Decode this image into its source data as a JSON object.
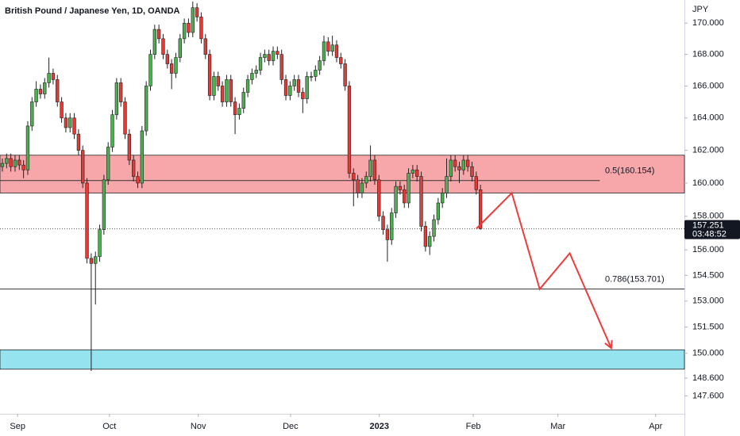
{
  "chart_data": {
    "type": "candlestick",
    "title": "British Pound / Japanese Yen, 1D, OANDA",
    "y_unit": "JPY",
    "log": true,
    "up_color": "#4caf50",
    "down_color": "#e53935",
    "wick_color": "#222222",
    "open": [
      161.0,
      161.2,
      161.5,
      161.0,
      161.4,
      161.1,
      160.8,
      163.5,
      165.0,
      165.8,
      165.5,
      166.2,
      166.8,
      166.4,
      165.0,
      164.0,
      163.4,
      164.0,
      163.0,
      162.0,
      160.0,
      155.5,
      155.2,
      155.6,
      157.2,
      160.2,
      162.2,
      164.2,
      166.2,
      165.0,
      163.0,
      161.4,
      160.4,
      160.0,
      163.2,
      166.0,
      168.0,
      169.6,
      169.0,
      168.0,
      167.4,
      166.8,
      167.8,
      169.0,
      170.0,
      169.4,
      171.0,
      170.4,
      169.0,
      168.0,
      165.4,
      166.6,
      166.0,
      165.0,
      166.4,
      165.0,
      164.2,
      164.6,
      165.6,
      166.4,
      166.8,
      167.0,
      167.8,
      168.0,
      167.6,
      168.2,
      168.0,
      166.4,
      165.4,
      166.0,
      166.4,
      165.6,
      165.2,
      166.6,
      166.6,
      167.0,
      167.6,
      168.8,
      168.2,
      168.6,
      167.8,
      167.4,
      166.0,
      160.6,
      160.2,
      159.4,
      160.0,
      160.4,
      161.4,
      160.2,
      158.0,
      157.2,
      156.6,
      158.2,
      159.8,
      159.6,
      158.8,
      160.6,
      160.8,
      160.4,
      157.4,
      156.2,
      156.8,
      157.8,
      158.8,
      159.4,
      160.4,
      161.4,
      161.0,
      160.8,
      161.4,
      161.0,
      160.4,
      159.6
    ],
    "high": [
      161.5,
      161.8,
      161.8,
      161.7,
      161.7,
      161.4,
      163.8,
      165.3,
      166.3,
      166.1,
      166.5,
      167.8,
      167.1,
      166.7,
      165.3,
      164.3,
      164.3,
      164.3,
      163.3,
      162.3,
      160.3,
      155.8,
      155.9,
      157.5,
      160.5,
      162.5,
      164.5,
      166.5,
      166.5,
      165.3,
      163.3,
      161.7,
      160.7,
      163.5,
      166.3,
      168.3,
      169.9,
      169.9,
      169.3,
      168.3,
      167.7,
      168.1,
      169.3,
      170.3,
      170.3,
      171.4,
      171.3,
      170.7,
      169.3,
      168.3,
      166.9,
      166.9,
      166.3,
      166.7,
      166.7,
      165.3,
      164.9,
      165.9,
      166.7,
      167.1,
      167.3,
      168.1,
      168.3,
      168.3,
      168.5,
      168.5,
      168.3,
      166.7,
      166.3,
      166.7,
      166.7,
      165.9,
      166.9,
      166.9,
      167.3,
      167.9,
      169.2,
      169.1,
      169.2,
      168.9,
      168.1,
      167.7,
      166.3,
      160.9,
      160.5,
      160.3,
      160.7,
      162.3,
      161.7,
      160.5,
      158.3,
      157.5,
      158.5,
      160.1,
      160.1,
      159.9,
      160.9,
      161.1,
      161.1,
      160.7,
      157.7,
      157.1,
      158.1,
      159.1,
      159.7,
      161.5,
      161.7,
      161.7,
      161.3,
      161.7,
      161.7,
      161.3,
      160.7,
      159.9
    ],
    "low": [
      160.7,
      160.9,
      160.7,
      160.7,
      160.8,
      160.3,
      160.5,
      163.2,
      164.7,
      165.2,
      165.2,
      165.9,
      166.1,
      164.7,
      163.7,
      163.1,
      163.1,
      162.7,
      161.7,
      159.7,
      155.2,
      149.0,
      152.8,
      155.3,
      156.9,
      159.9,
      161.9,
      163.9,
      164.7,
      162.7,
      161.1,
      160.1,
      159.7,
      159.7,
      162.9,
      165.7,
      167.7,
      168.7,
      167.7,
      167.1,
      165.8,
      166.5,
      167.5,
      168.7,
      169.1,
      169.1,
      170.1,
      168.7,
      167.7,
      165.1,
      165.1,
      165.7,
      164.7,
      164.7,
      164.7,
      163.0,
      163.9,
      164.3,
      165.3,
      166.1,
      166.5,
      166.7,
      167.5,
      167.3,
      167.3,
      167.7,
      166.1,
      165.1,
      165.1,
      165.7,
      165.3,
      164.3,
      164.9,
      166.3,
      166.3,
      166.7,
      167.3,
      167.9,
      167.9,
      167.5,
      167.1,
      165.7,
      160.3,
      158.6,
      159.1,
      159.1,
      159.7,
      160.1,
      159.9,
      157.7,
      156.9,
      155.3,
      156.3,
      157.9,
      159.3,
      158.5,
      158.5,
      160.3,
      160.1,
      157.1,
      155.9,
      155.7,
      156.5,
      157.5,
      158.5,
      159.1,
      160.1,
      160.7,
      160.0,
      160.5,
      160.7,
      160.1,
      159.3,
      157.2
    ],
    "close": [
      161.2,
      161.5,
      161.0,
      161.4,
      161.1,
      160.8,
      163.5,
      165.0,
      165.8,
      165.5,
      166.2,
      166.8,
      166.4,
      165.0,
      164.0,
      163.4,
      164.0,
      163.0,
      162.0,
      160.0,
      155.5,
      155.2,
      155.6,
      157.2,
      160.2,
      162.2,
      164.2,
      166.2,
      165.0,
      163.0,
      161.4,
      160.4,
      160.0,
      163.2,
      166.0,
      168.0,
      169.6,
      169.0,
      168.0,
      167.4,
      166.8,
      167.8,
      169.0,
      170.0,
      169.4,
      171.0,
      170.4,
      169.0,
      168.0,
      165.4,
      166.6,
      166.0,
      165.0,
      166.4,
      165.0,
      164.2,
      164.6,
      165.6,
      166.4,
      166.8,
      167.0,
      167.8,
      168.0,
      167.6,
      168.2,
      168.0,
      166.4,
      165.4,
      166.0,
      166.4,
      165.6,
      165.2,
      166.6,
      166.6,
      167.0,
      167.6,
      168.8,
      168.2,
      168.6,
      167.8,
      167.4,
      166.0,
      160.6,
      160.2,
      159.4,
      160.0,
      160.4,
      161.4,
      160.2,
      158.0,
      157.2,
      156.6,
      158.2,
      159.8,
      159.6,
      158.8,
      160.6,
      160.8,
      160.4,
      157.4,
      156.2,
      156.8,
      157.8,
      158.8,
      159.4,
      160.4,
      161.4,
      161.0,
      160.8,
      161.4,
      161.0,
      160.4,
      159.6,
      157.251
    ],
    "countdown": "03:48:52",
    "xlim": [
      -0.56,
      161.2
    ],
    "xticks": [
      {
        "value": 3.6,
        "label": "Sep"
      },
      {
        "value": 25.3,
        "label": "Oct"
      },
      {
        "value": 46.3,
        "label": "Nov"
      },
      {
        "value": 68.1,
        "label": "Dec"
      },
      {
        "value": 89.1,
        "label": "2023"
      },
      {
        "value": 111.3,
        "label": "Feb"
      },
      {
        "value": 131.3,
        "label": "Mar"
      },
      {
        "value": 154.4,
        "label": "Apr"
      }
    ],
    "ylim": [
      146.6,
      171.5
    ],
    "yticks": [
      {
        "value": 170,
        "label": "170.000"
      },
      {
        "value": 168,
        "label": "168.000"
      },
      {
        "value": 166,
        "label": "166.000"
      },
      {
        "value": 164,
        "label": "164.000"
      },
      {
        "value": 162,
        "label": "162.000"
      },
      {
        "value": 160,
        "label": "160.000"
      },
      {
        "value": 158,
        "label": "158.000"
      },
      {
        "value": 156,
        "label": "156.000"
      },
      {
        "value": 154.5,
        "label": "154.500"
      },
      {
        "value": 153,
        "label": "153.000"
      },
      {
        "value": 151.5,
        "label": "151.500"
      },
      {
        "value": 150,
        "label": "150.000"
      },
      {
        "value": 148.6,
        "label": "148.600"
      },
      {
        "value": 147.6,
        "label": "147.600"
      }
    ],
    "zones": [
      {
        "ylim": [
          159.4,
          161.7
        ],
        "color": "#f7a7aa"
      },
      {
        "ylim": [
          149.1,
          150.2
        ],
        "color": "#95e3ee"
      }
    ],
    "levels": [
      {
        "value": 160.154,
        "label": "0.5(160.154)",
        "xlim": [
          -0.56,
          141.2
        ]
      },
      {
        "value": 153.701,
        "label": "0.786(153.701)",
        "xlim": [
          -0.56,
          161.2
        ]
      }
    ],
    "projection": {
      "color": "#ef3b3b",
      "x": [
        112,
        120.4,
        127,
        134.1,
        143.9
      ],
      "y": [
        157.251,
        159.4,
        153.7,
        155.8,
        150.3
      ]
    }
  }
}
